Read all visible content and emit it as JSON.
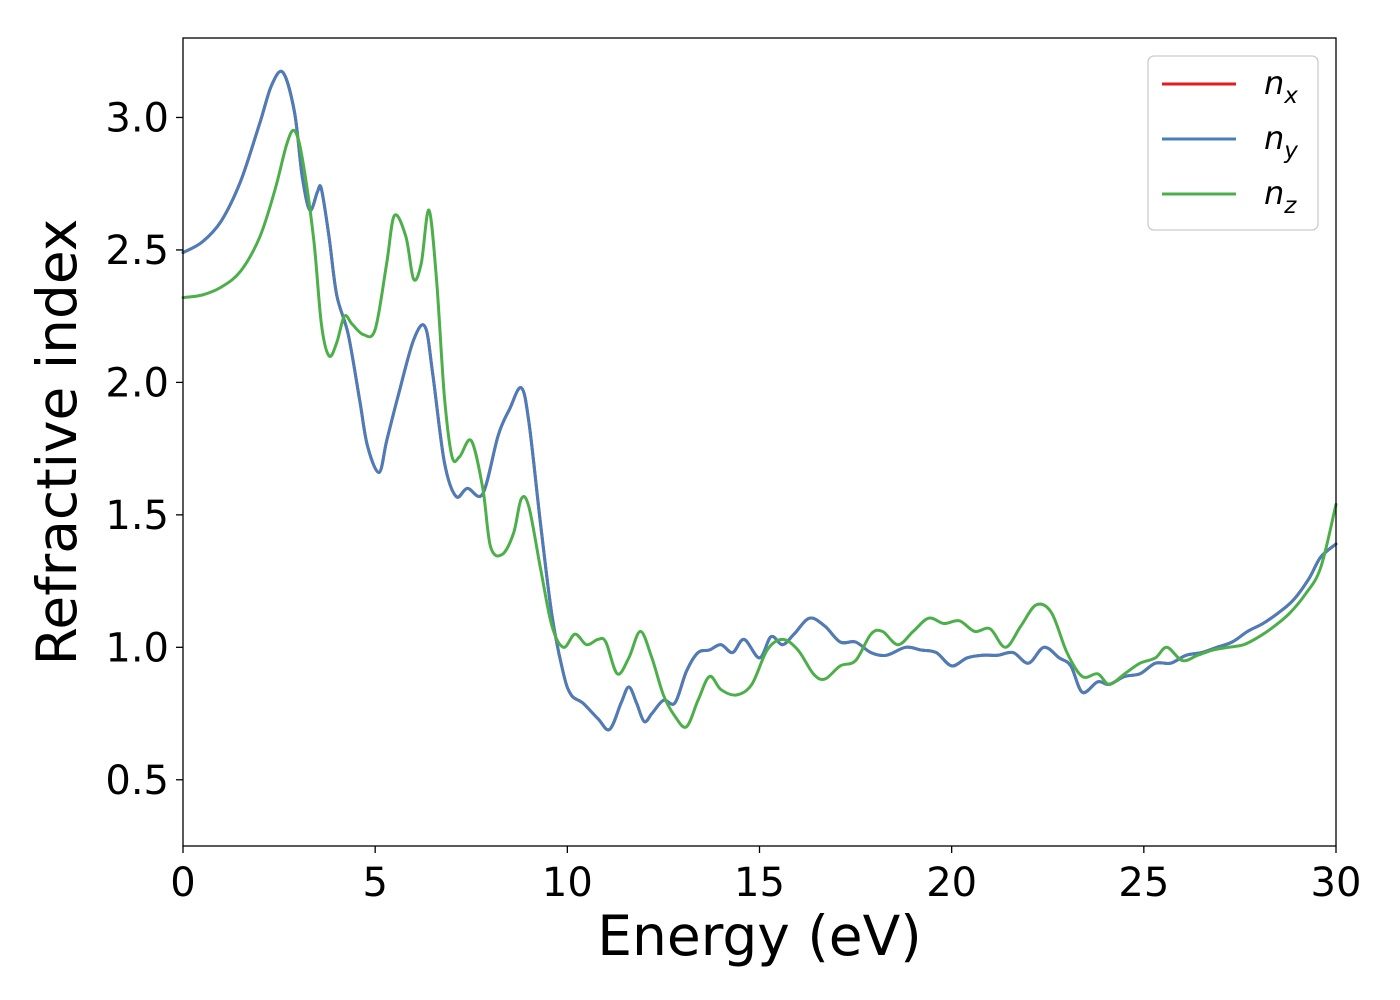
{
  "chart_data": {
    "type": "line",
    "xlabel": "Energy (eV)",
    "ylabel": "Refractive index",
    "xlim": [
      0,
      30
    ],
    "ylim": [
      0.25,
      3.3
    ],
    "xticks": [
      "0",
      "5",
      "10",
      "15",
      "20",
      "25",
      "30"
    ],
    "yticks": [
      "0.5",
      "1.0",
      "1.5",
      "2.0",
      "2.5",
      "3.0"
    ],
    "grid": false,
    "legend_position": "top-right",
    "series": [
      {
        "name": "n_x",
        "label_base": "n",
        "label_sub": "x",
        "color": "#e41a1c",
        "x": [
          0,
          0.5,
          1,
          1.5,
          2,
          2.3,
          2.6,
          2.9,
          3.1,
          3.3,
          3.5,
          3.6,
          3.8,
          4.0,
          4.3,
          4.6,
          4.8,
          5.1,
          5.3,
          5.6,
          6.0,
          6.3,
          6.5,
          6.8,
          7.1,
          7.4,
          7.8,
          8.2,
          8.5,
          8.8,
          9.0,
          9.3,
          9.6,
          9.9,
          10.1,
          10.4,
          10.8,
          11.1,
          11.4,
          11.6,
          11.8,
          12.0,
          12.2,
          12.5,
          12.8,
          13.1,
          13.4,
          13.7,
          14.0,
          14.3,
          14.6,
          15.0,
          15.3,
          15.6,
          15.9,
          16.3,
          16.7,
          17.1,
          17.5,
          17.9,
          18.3,
          18.8,
          19.2,
          19.6,
          20.0,
          20.4,
          20.8,
          21.2,
          21.6,
          22.0,
          22.4,
          22.8,
          23.1,
          23.4,
          23.8,
          24.1,
          24.5,
          24.9,
          25.3,
          25.7,
          26.1,
          26.5,
          26.9,
          27.3,
          27.7,
          28.1,
          28.5,
          28.9,
          29.3,
          29.6,
          30.0
        ],
        "y": [
          2.49,
          2.53,
          2.61,
          2.76,
          2.98,
          3.12,
          3.17,
          3.02,
          2.78,
          2.65,
          2.72,
          2.73,
          2.55,
          2.33,
          2.18,
          1.93,
          1.76,
          1.66,
          1.78,
          1.95,
          2.16,
          2.21,
          2.03,
          1.7,
          1.57,
          1.6,
          1.58,
          1.8,
          1.9,
          1.98,
          1.85,
          1.47,
          1.12,
          0.9,
          0.82,
          0.79,
          0.73,
          0.69,
          0.79,
          0.85,
          0.79,
          0.72,
          0.75,
          0.8,
          0.79,
          0.91,
          0.98,
          0.99,
          1.01,
          0.98,
          1.03,
          0.96,
          1.04,
          1.01,
          1.05,
          1.11,
          1.08,
          1.02,
          1.02,
          0.98,
          0.97,
          1.0,
          0.99,
          0.98,
          0.93,
          0.96,
          0.97,
          0.97,
          0.98,
          0.94,
          1.0,
          0.96,
          0.93,
          0.83,
          0.87,
          0.86,
          0.89,
          0.9,
          0.94,
          0.94,
          0.97,
          0.98,
          1.0,
          1.02,
          1.06,
          1.09,
          1.13,
          1.18,
          1.26,
          1.34,
          1.39
        ]
      },
      {
        "name": "n_y",
        "label_base": "n",
        "label_sub": "y",
        "color": "#4a7ebb",
        "x": [
          0,
          0.5,
          1,
          1.5,
          2,
          2.3,
          2.6,
          2.9,
          3.1,
          3.3,
          3.5,
          3.6,
          3.8,
          4.0,
          4.3,
          4.6,
          4.8,
          5.1,
          5.3,
          5.6,
          6.0,
          6.3,
          6.5,
          6.8,
          7.1,
          7.4,
          7.8,
          8.2,
          8.5,
          8.8,
          9.0,
          9.3,
          9.6,
          9.9,
          10.1,
          10.4,
          10.8,
          11.1,
          11.4,
          11.6,
          11.8,
          12.0,
          12.2,
          12.5,
          12.8,
          13.1,
          13.4,
          13.7,
          14.0,
          14.3,
          14.6,
          15.0,
          15.3,
          15.6,
          15.9,
          16.3,
          16.7,
          17.1,
          17.5,
          17.9,
          18.3,
          18.8,
          19.2,
          19.6,
          20.0,
          20.4,
          20.8,
          21.2,
          21.6,
          22.0,
          22.4,
          22.8,
          23.1,
          23.4,
          23.8,
          24.1,
          24.5,
          24.9,
          25.3,
          25.7,
          26.1,
          26.5,
          26.9,
          27.3,
          27.7,
          28.1,
          28.5,
          28.9,
          29.3,
          29.6,
          30.0
        ],
        "y": [
          2.49,
          2.53,
          2.61,
          2.76,
          2.98,
          3.12,
          3.17,
          3.02,
          2.78,
          2.65,
          2.72,
          2.73,
          2.55,
          2.33,
          2.18,
          1.93,
          1.76,
          1.66,
          1.78,
          1.95,
          2.16,
          2.21,
          2.03,
          1.7,
          1.57,
          1.6,
          1.58,
          1.8,
          1.9,
          1.98,
          1.85,
          1.47,
          1.12,
          0.9,
          0.82,
          0.79,
          0.73,
          0.69,
          0.79,
          0.85,
          0.79,
          0.72,
          0.75,
          0.8,
          0.79,
          0.91,
          0.98,
          0.99,
          1.01,
          0.98,
          1.03,
          0.96,
          1.04,
          1.01,
          1.05,
          1.11,
          1.08,
          1.02,
          1.02,
          0.98,
          0.97,
          1.0,
          0.99,
          0.98,
          0.93,
          0.96,
          0.97,
          0.97,
          0.98,
          0.94,
          1.0,
          0.96,
          0.93,
          0.83,
          0.87,
          0.86,
          0.89,
          0.9,
          0.94,
          0.94,
          0.97,
          0.98,
          1.0,
          1.02,
          1.06,
          1.09,
          1.13,
          1.18,
          1.26,
          1.34,
          1.39
        ]
      },
      {
        "name": "n_z",
        "label_base": "n",
        "label_sub": "z",
        "color": "#4daf4a",
        "x": [
          0,
          0.5,
          1,
          1.5,
          2,
          2.4,
          2.7,
          2.9,
          3.1,
          3.4,
          3.6,
          3.8,
          4.0,
          4.2,
          4.4,
          4.7,
          5.0,
          5.3,
          5.5,
          5.8,
          6.0,
          6.2,
          6.4,
          6.6,
          6.8,
          7.0,
          7.2,
          7.5,
          7.8,
          8.0,
          8.3,
          8.6,
          8.8,
          9.0,
          9.3,
          9.6,
          9.9,
          10.2,
          10.5,
          10.8,
          11.0,
          11.3,
          11.6,
          11.9,
          12.2,
          12.5,
          12.8,
          13.1,
          13.4,
          13.7,
          14.0,
          14.4,
          14.8,
          15.2,
          15.6,
          16.0,
          16.4,
          16.7,
          17.1,
          17.5,
          17.9,
          18.2,
          18.6,
          19.0,
          19.4,
          19.8,
          20.2,
          20.6,
          21.0,
          21.4,
          21.8,
          22.2,
          22.6,
          23.0,
          23.4,
          23.8,
          24.1,
          24.5,
          24.9,
          25.3,
          25.6,
          26.0,
          26.4,
          26.8,
          27.2,
          27.6,
          28.0,
          28.4,
          28.8,
          29.2,
          29.6,
          30.0
        ],
        "y": [
          2.32,
          2.33,
          2.36,
          2.42,
          2.55,
          2.73,
          2.9,
          2.95,
          2.85,
          2.54,
          2.22,
          2.1,
          2.15,
          2.25,
          2.22,
          2.18,
          2.2,
          2.45,
          2.63,
          2.55,
          2.39,
          2.45,
          2.65,
          2.38,
          1.95,
          1.72,
          1.72,
          1.78,
          1.6,
          1.38,
          1.35,
          1.43,
          1.56,
          1.53,
          1.3,
          1.08,
          1.0,
          1.05,
          1.01,
          1.03,
          1.02,
          0.9,
          0.96,
          1.06,
          0.96,
          0.82,
          0.74,
          0.7,
          0.8,
          0.89,
          0.84,
          0.82,
          0.86,
          0.99,
          1.03,
          0.99,
          0.9,
          0.88,
          0.93,
          0.95,
          1.05,
          1.06,
          1.01,
          1.06,
          1.11,
          1.09,
          1.1,
          1.06,
          1.07,
          1.0,
          1.08,
          1.16,
          1.13,
          0.98,
          0.89,
          0.9,
          0.86,
          0.9,
          0.94,
          0.96,
          1.0,
          0.95,
          0.97,
          0.99,
          1.0,
          1.01,
          1.04,
          1.08,
          1.13,
          1.2,
          1.3,
          1.54
        ]
      }
    ]
  }
}
